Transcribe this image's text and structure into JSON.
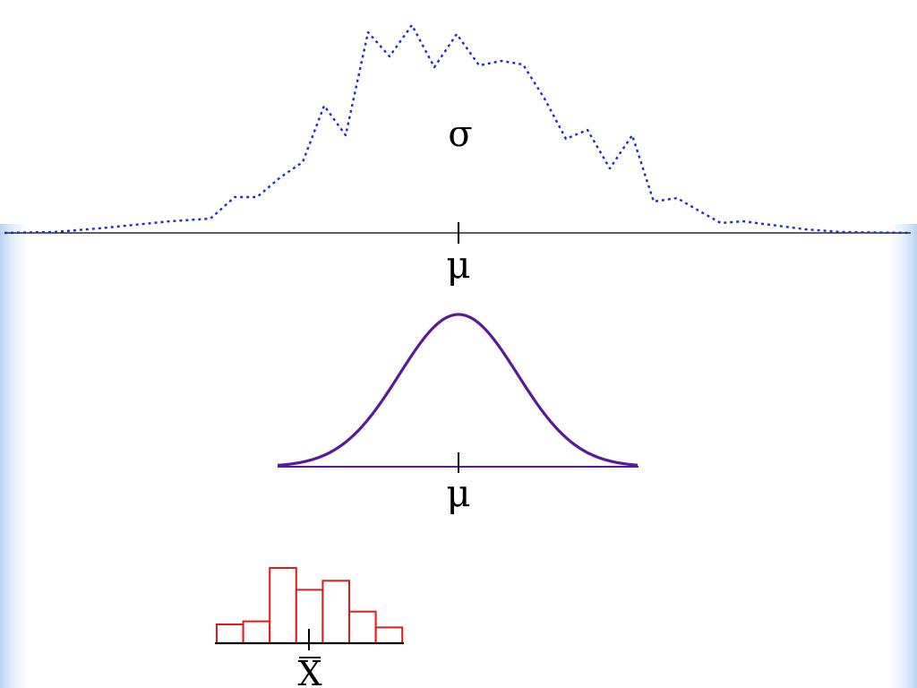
{
  "population": {
    "color": "#1a2ecc",
    "spread_symbol": "σ",
    "center_symbol": "μ"
  },
  "sampling_distribution": {
    "color": "#5a189a",
    "center_symbol": "μ"
  },
  "sample": {
    "color": "#e01a1a",
    "center_symbol": "X",
    "bar_heights_relative": [
      0.25,
      0.29,
      1.0,
      0.71,
      0.83,
      0.42,
      0.21
    ]
  }
}
